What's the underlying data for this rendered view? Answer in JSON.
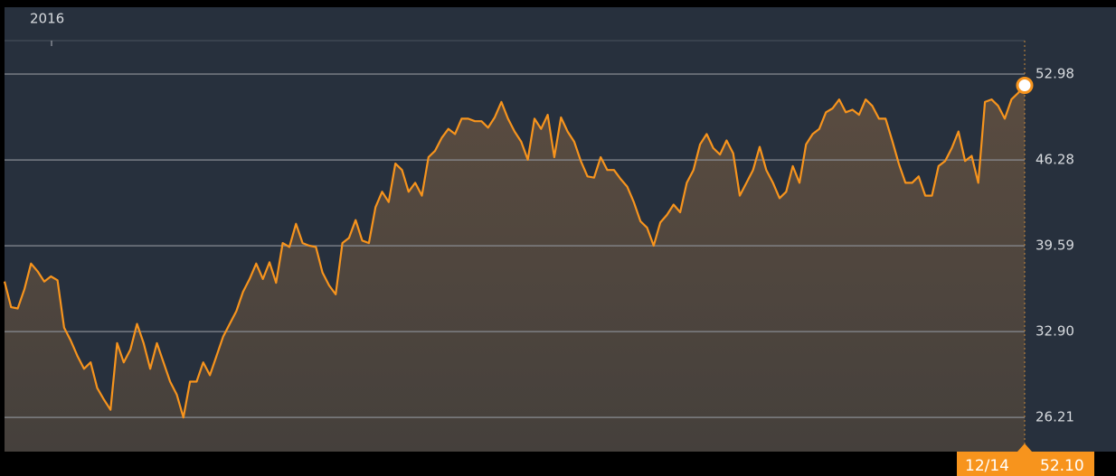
{
  "chart_data": {
    "type": "area-line",
    "period_label": "2016",
    "color": "#f7941d",
    "values": [
      36.8,
      34.8,
      34.7,
      36.2,
      38.2,
      37.6,
      36.8,
      37.2,
      36.9,
      33.2,
      32.2,
      31,
      30,
      30.5,
      28.5,
      27.6,
      26.8,
      32,
      30.5,
      31.5,
      33.5,
      32,
      30,
      32,
      30.5,
      29,
      28,
      26.2,
      29,
      29,
      30.5,
      29.5,
      31,
      32.5,
      33.5,
      34.5,
      36,
      37,
      38.2,
      37,
      38.3,
      36.7,
      39.8,
      39.5,
      41.3,
      39.8,
      39.6,
      39.5,
      37.5,
      36.5,
      35.8,
      39.8,
      40.2,
      41.6,
      40,
      39.8,
      42.6,
      43.8,
      43,
      46,
      45.5,
      43.8,
      44.5,
      43.5,
      46.5,
      47,
      48,
      48.7,
      48.3,
      49.5,
      49.5,
      49.3,
      49.3,
      48.8,
      49.6,
      50.8,
      49.5,
      48.5,
      47.7,
      46.3,
      49.5,
      48.7,
      49.8,
      46.5,
      49.6,
      48.5,
      47.7,
      46.2,
      45,
      44.9,
      46.5,
      45.5,
      45.5,
      44.8,
      44.2,
      43,
      41.5,
      41,
      39.6,
      41.4,
      42,
      42.8,
      42.2,
      44.5,
      45.5,
      47.5,
      48.3,
      47.2,
      46.7,
      47.8,
      46.8,
      43.5,
      44.5,
      45.5,
      47.3,
      45.5,
      44.5,
      43.3,
      43.8,
      45.8,
      44.5,
      47.5,
      48.3,
      48.7,
      50,
      50.3,
      51,
      50,
      50.2,
      49.8,
      51,
      50.5,
      49.5,
      49.5,
      47.8,
      46,
      44.5,
      44.5,
      45,
      43.5,
      43.5,
      45.8,
      46.2,
      47.2,
      48.5,
      46.2,
      46.6,
      44.5,
      50.8,
      51,
      50.5,
      49.5,
      51,
      51.5,
      52.1
    ],
    "ylim": [
      23.54,
      58.19
    ],
    "yticks": [
      26.21,
      {
        "value": 32.9,
        "label": "32.90"
      },
      39.59,
      46.28,
      52.98
    ],
    "grid": true,
    "last_label": {
      "date": "12/14",
      "value": "52.10"
    }
  }
}
